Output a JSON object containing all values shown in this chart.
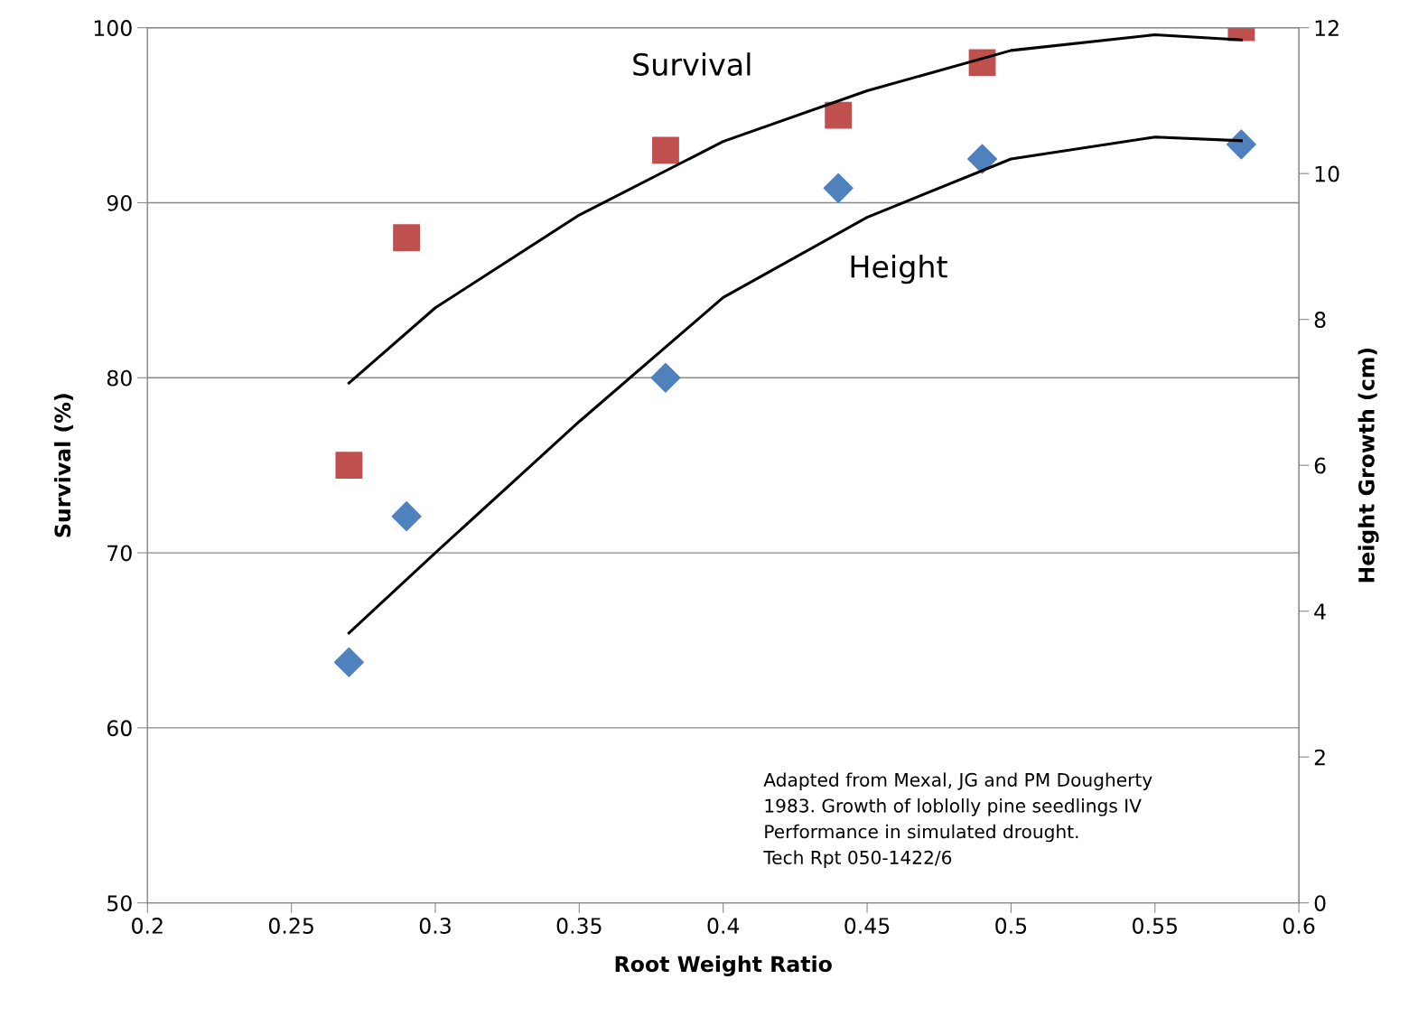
{
  "chart_data": {
    "type": "scatter",
    "xlabel": "Root Weight Ratio",
    "ylabel": "Survival (%)",
    "y2label": "Height Growth (cm)",
    "xlim": [
      0.2,
      0.6
    ],
    "xticks": [
      0.2,
      0.25,
      0.3,
      0.35,
      0.4,
      0.45,
      0.5,
      0.55,
      0.6
    ],
    "ylim": [
      50,
      100
    ],
    "yticks": [
      50,
      60,
      70,
      80,
      90,
      100
    ],
    "y2lim": [
      0,
      12
    ],
    "y2ticks": [
      0,
      2,
      4,
      6,
      8,
      10,
      12
    ],
    "grid": "y",
    "series": [
      {
        "type": "scatter",
        "marker": "square",
        "color": "#c0504d",
        "x": [
          0.27,
          0.29,
          0.38,
          0.44,
          0.49,
          0.58
        ],
        "values": [
          75,
          88,
          93,
          95,
          98,
          100
        ]
      },
      {
        "type": "scatter",
        "marker": "diamond",
        "color": "#4f81bd",
        "axis": "y2",
        "x": [
          0.27,
          0.29,
          0.38,
          0.44,
          0.49,
          0.58
        ],
        "values": [
          3.3,
          5.3,
          7.2,
          9.8,
          10.2,
          10.4
        ]
      },
      {
        "type": "line",
        "marker": "none",
        "color": "#000000",
        "x": [
          0.27,
          0.3,
          0.35,
          0.4,
          0.45,
          0.5,
          0.55,
          0.58
        ],
        "values": [
          79.7,
          84.0,
          89.3,
          93.5,
          96.4,
          98.7,
          99.6,
          99.3
        ]
      },
      {
        "type": "line",
        "marker": "none",
        "color": "#000000",
        "axis": "y2",
        "x": [
          0.27,
          0.3,
          0.35,
          0.4,
          0.45,
          0.5,
          0.55,
          0.58
        ],
        "values": [
          3.7,
          4.8,
          6.6,
          8.3,
          9.4,
          10.2,
          10.5,
          10.45
        ]
      }
    ],
    "annotations": [
      "Survival",
      "Height",
      "Adapted from Mexal, JG and PM Dougherty\n1983. Growth of loblolly pine seedlings IV\nPerformance in simulated drought.\nTech Rpt 050-1422/6"
    ]
  }
}
